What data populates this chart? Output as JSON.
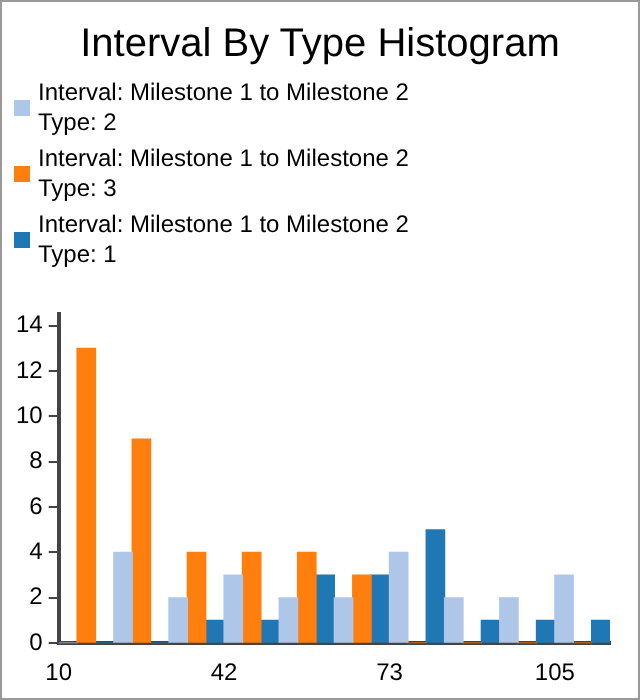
{
  "chart_data": {
    "type": "histogram",
    "title": "Interval By Type Histogram",
    "bins": [
      10,
      20.5,
      31,
      41.5,
      52,
      62.5,
      73,
      83.5,
      94,
      104.5,
      115
    ],
    "series": [
      {
        "name": "Interval: Milestone 1 to Milestone 2\nType: 2",
        "color": "#aec7e8",
        "values": [
          0,
          4,
          2,
          3,
          2,
          2,
          4,
          2,
          2,
          3
        ]
      },
      {
        "name": "Interval: Milestone 1 to Milestone 2\nType: 3",
        "color": "#ff7f0e",
        "values": [
          13,
          9,
          4,
          4,
          4,
          3,
          0,
          0,
          0,
          0
        ]
      },
      {
        "name": "Interval: Milestone 1 to Milestone 2\nType: 1",
        "color": "#1f77b4",
        "values": [
          0,
          0,
          1,
          1,
          3,
          3,
          5,
          1,
          1,
          1
        ]
      }
    ],
    "xlim": [
      10,
      115
    ],
    "xticks": [
      10,
      {
        "value": 41.5,
        "label": "42"
      },
      73,
      {
        "value": 104.5,
        "label": "105"
      }
    ],
    "ylim": [
      0,
      14.5
    ],
    "yticks": [
      0,
      2,
      4,
      6,
      8,
      10,
      12,
      14
    ],
    "grid": false,
    "legend": "top"
  }
}
